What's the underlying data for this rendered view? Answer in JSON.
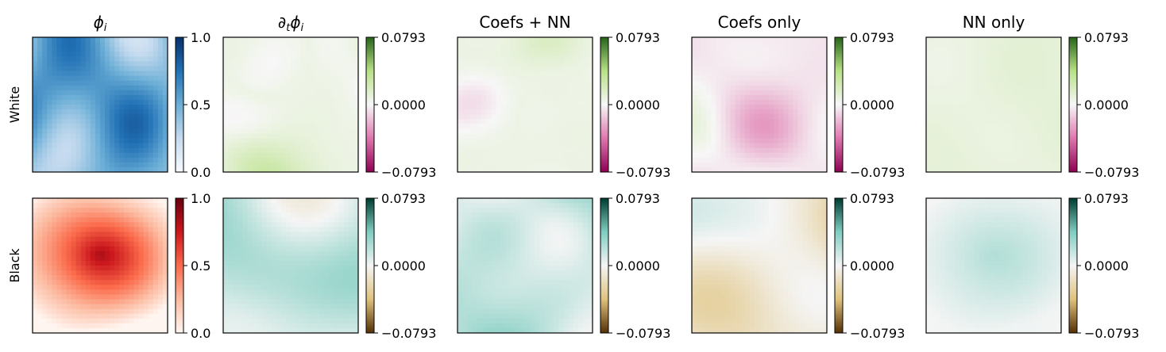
{
  "chart_data": {
    "type": "heatmap",
    "columns": [
      {
        "title": "ϕ",
        "title_sub": "i",
        "title_prefix": ""
      },
      {
        "title": "ϕ",
        "title_sub": "i",
        "title_prefix": "∂",
        "title_prefix_sub": "t"
      },
      {
        "title": "Coefs + NN"
      },
      {
        "title": "Coefs only"
      },
      {
        "title": "NN only"
      }
    ],
    "rows": [
      {
        "label": "White",
        "phi_cmap": "Blues",
        "diff_cmap": "PiYG",
        "phi_colors": [
          "#f7fbff",
          "#c6dbef",
          "#6baed6",
          "#2171b5",
          "#08306b"
        ],
        "diff_colors": [
          "#8e0152",
          "#de77ae",
          "#f7f7f7",
          "#b8e186",
          "#276419"
        ]
      },
      {
        "label": "Black",
        "phi_cmap": "Reds",
        "diff_cmap": "BrBG",
        "phi_colors": [
          "#fff5f0",
          "#fcbba1",
          "#fb6a4a",
          "#cb181d",
          "#67000d"
        ],
        "diff_colors": [
          "#543005",
          "#dfc27d",
          "#f5f5f5",
          "#80cdc1",
          "#003c30"
        ]
      }
    ],
    "colorbar_phi": {
      "range": [
        0.0,
        1.0
      ],
      "ticks": [
        "1.0",
        "0.5",
        "0.0"
      ]
    },
    "colorbar_diff": {
      "range": [
        -0.0793,
        0.0793
      ],
      "ticks": [
        "0.0793",
        "0.0000",
        "−0.0793"
      ]
    }
  }
}
